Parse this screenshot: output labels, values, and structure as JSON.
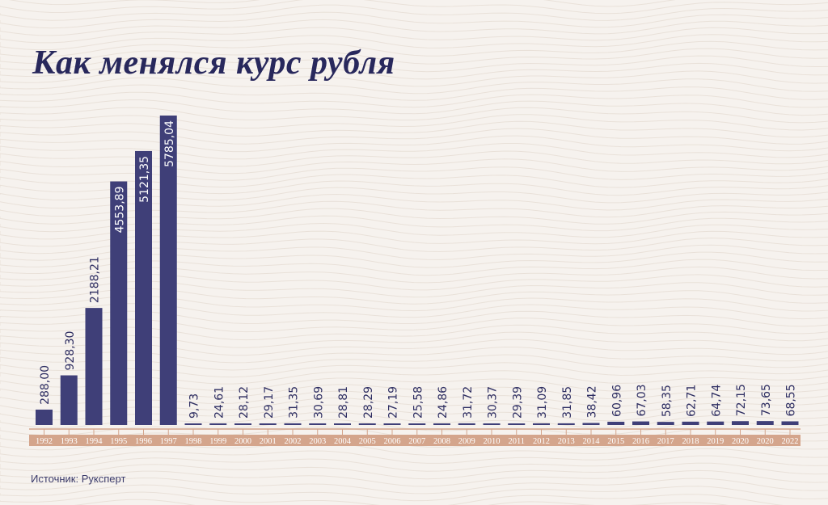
{
  "header": {
    "title": "Как менялся курс рубля"
  },
  "footer": {
    "source": "Источник: Руксперт"
  },
  "colors": {
    "bar": "#3f3f78",
    "axis_band": "#d4a58c",
    "axis_text": "#ffffff",
    "label": "#2e2e62",
    "title": "#28285c"
  },
  "chart_data": {
    "type": "bar",
    "title": "Как менялся курс рубля",
    "xlabel": "",
    "ylabel": "",
    "grid": false,
    "legend": "none",
    "ylim": [
      0,
      6200
    ],
    "categories": [
      "1992",
      "1993",
      "1994",
      "1995",
      "1996",
      "1997",
      "1998",
      "1999",
      "2000",
      "2001",
      "2002",
      "2003",
      "2004",
      "2005",
      "2006",
      "2007",
      "2008",
      "2009",
      "2010",
      "2011",
      "2012",
      "2013",
      "2014",
      "2015",
      "2016",
      "2017",
      "2018",
      "2019",
      "2020",
      "2020",
      "2022"
    ],
    "values": [
      288.0,
      928.3,
      2188.21,
      4553.89,
      5121.35,
      5785.04,
      9.73,
      24.61,
      28.12,
      29.17,
      31.35,
      30.69,
      28.81,
      28.29,
      27.19,
      25.58,
      24.86,
      31.72,
      30.37,
      29.39,
      31.09,
      31.85,
      38.42,
      60.96,
      67.03,
      58.35,
      62.71,
      64.74,
      72.15,
      73.65,
      68.55
    ],
    "labels": [
      "288,00",
      "928,30",
      "2188,21",
      "4553,89",
      "5121,35",
      "5785,04",
      "9,73",
      "24,61",
      "28,12",
      "29,17",
      "31,35",
      "30,69",
      "28,81",
      "28,29",
      "27,19",
      "25,58",
      "24,86",
      "31,72",
      "30,37",
      "29,39",
      "31,09",
      "31,85",
      "38,42",
      "60,96",
      "67,03",
      "58,35",
      "62,71",
      "64,74",
      "72,15",
      "73,65",
      "68,55"
    ]
  }
}
